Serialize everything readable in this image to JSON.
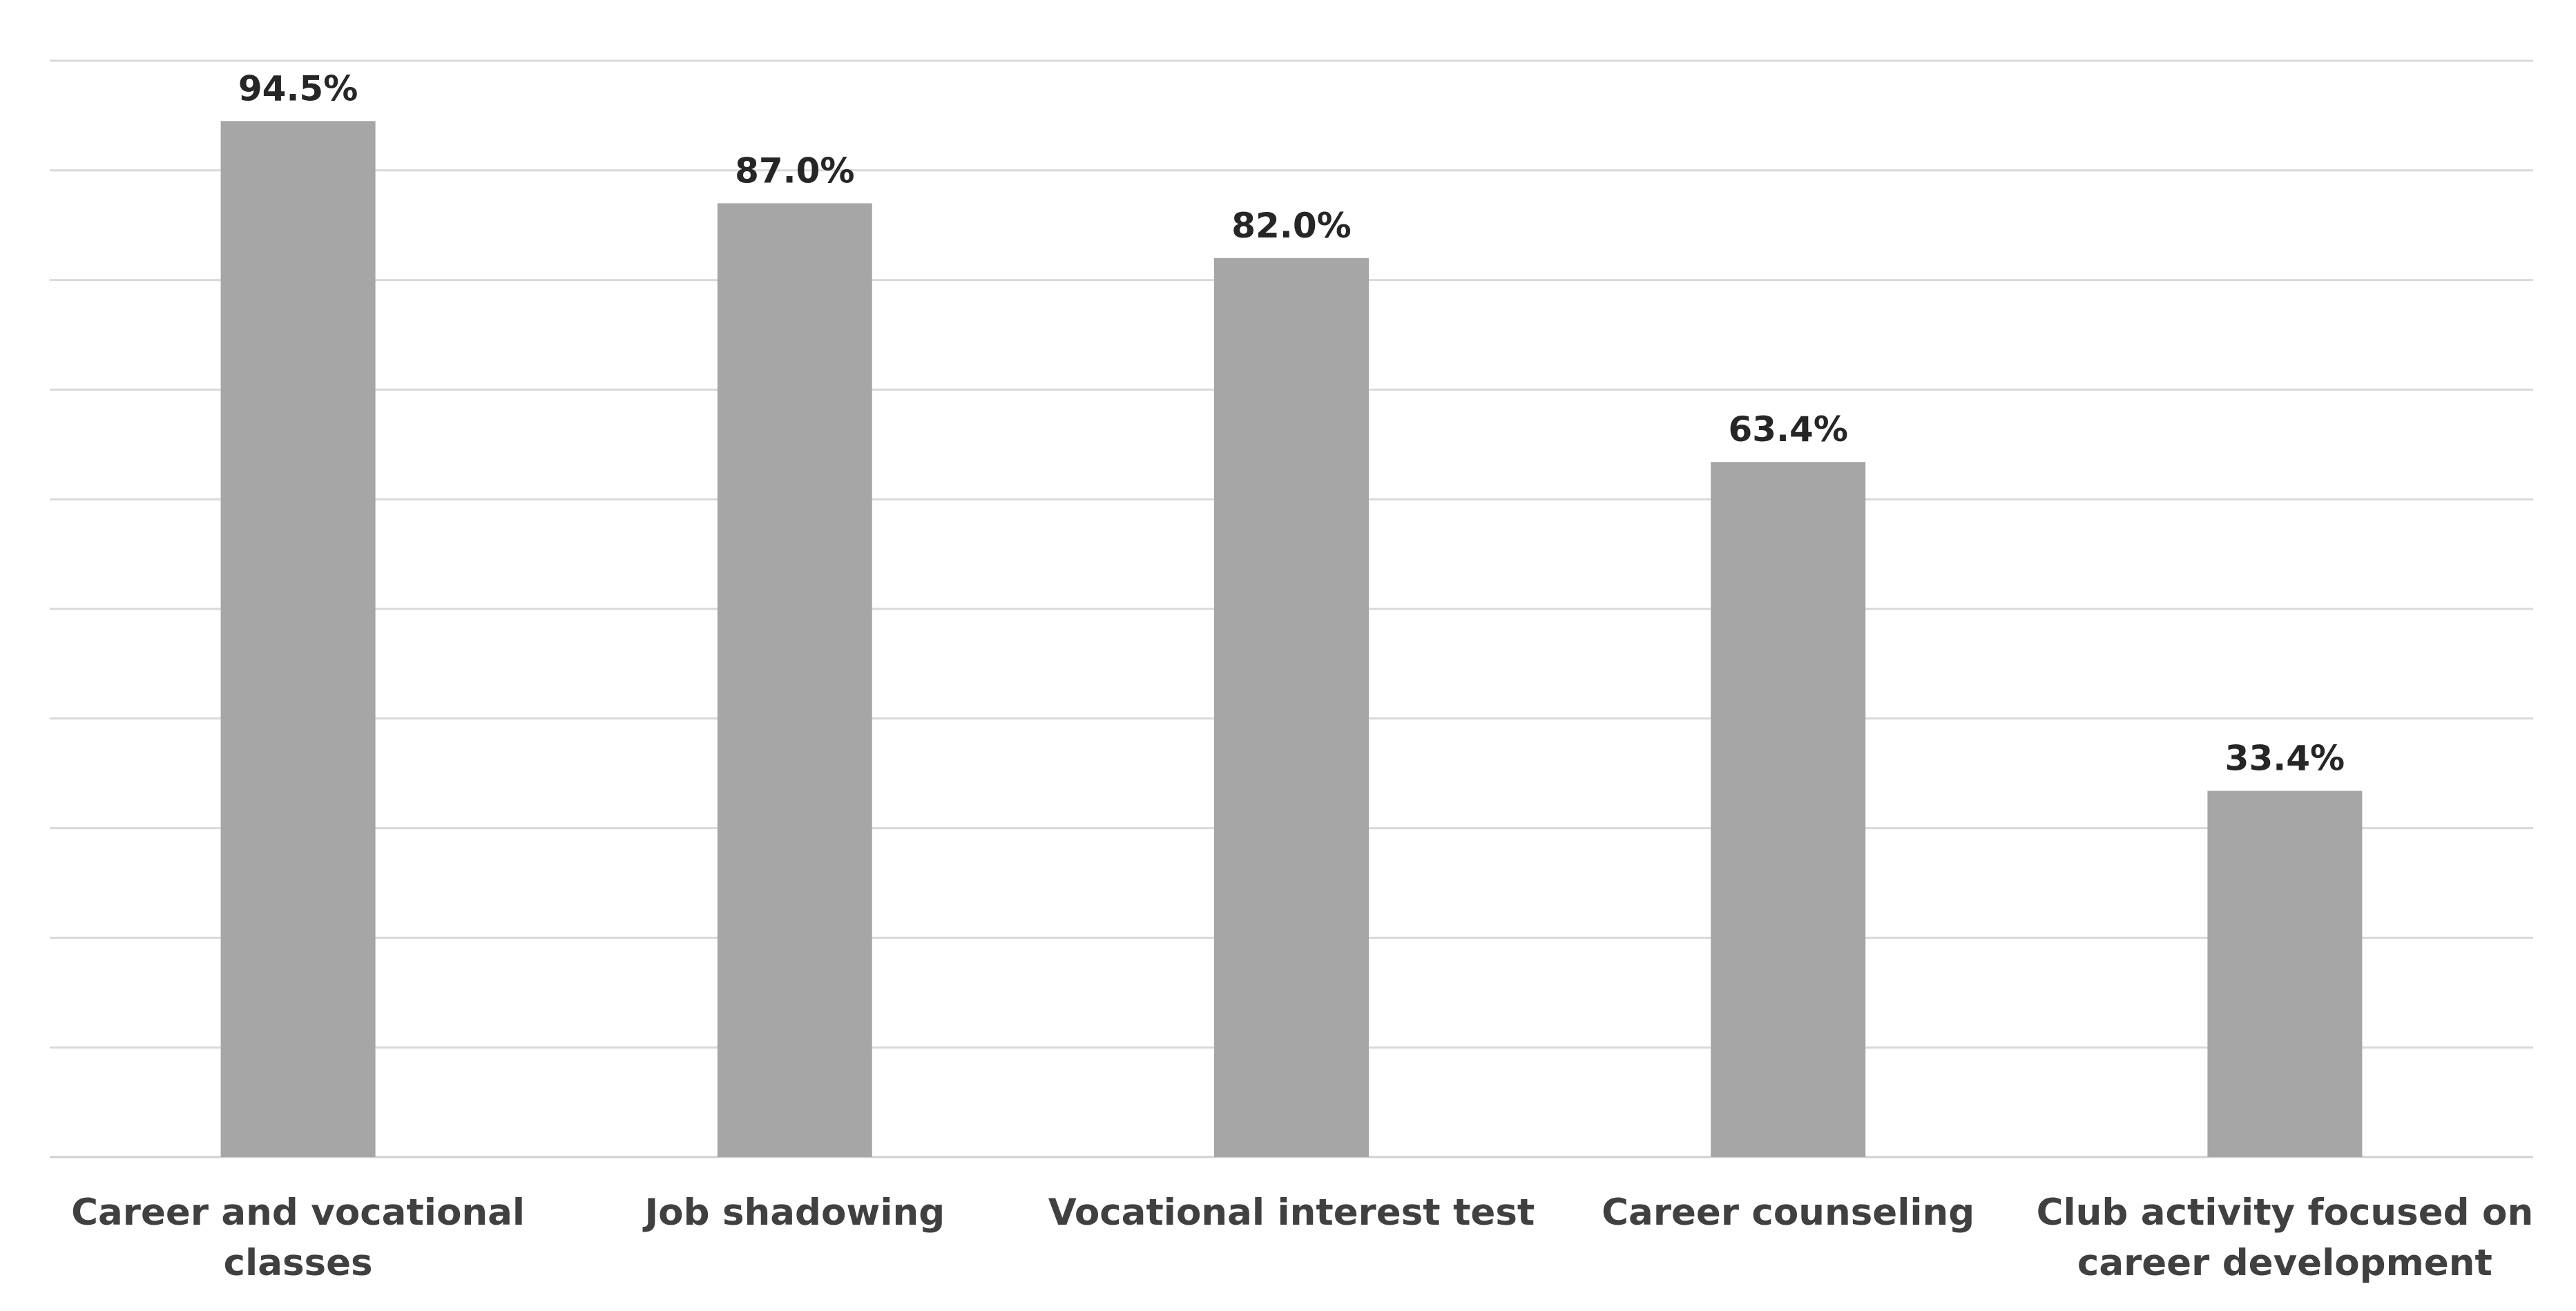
{
  "chart_data": {
    "type": "bar",
    "categories": [
      [
        "Career and vocational",
        "classes"
      ],
      [
        "Job shadowing"
      ],
      [
        "Vocational interest test"
      ],
      [
        "Career counseling"
      ],
      [
        "Club activity focused on",
        "career development"
      ]
    ],
    "values": [
      94.5,
      87.0,
      82.0,
      63.4,
      33.4
    ],
    "data_labels": [
      "94.5%",
      "87.0%",
      "82.0%",
      "63.4%",
      "33.4%"
    ],
    "ylim": [
      0,
      100
    ],
    "gridline_step": 10,
    "grid": true,
    "legend": "none",
    "title": "",
    "xlabel": "",
    "ylabel": "",
    "colors": {
      "bar": "#a6a6a6",
      "grid": "#d9d9d9",
      "data_label": "#262626",
      "category_label": "#404040"
    }
  }
}
